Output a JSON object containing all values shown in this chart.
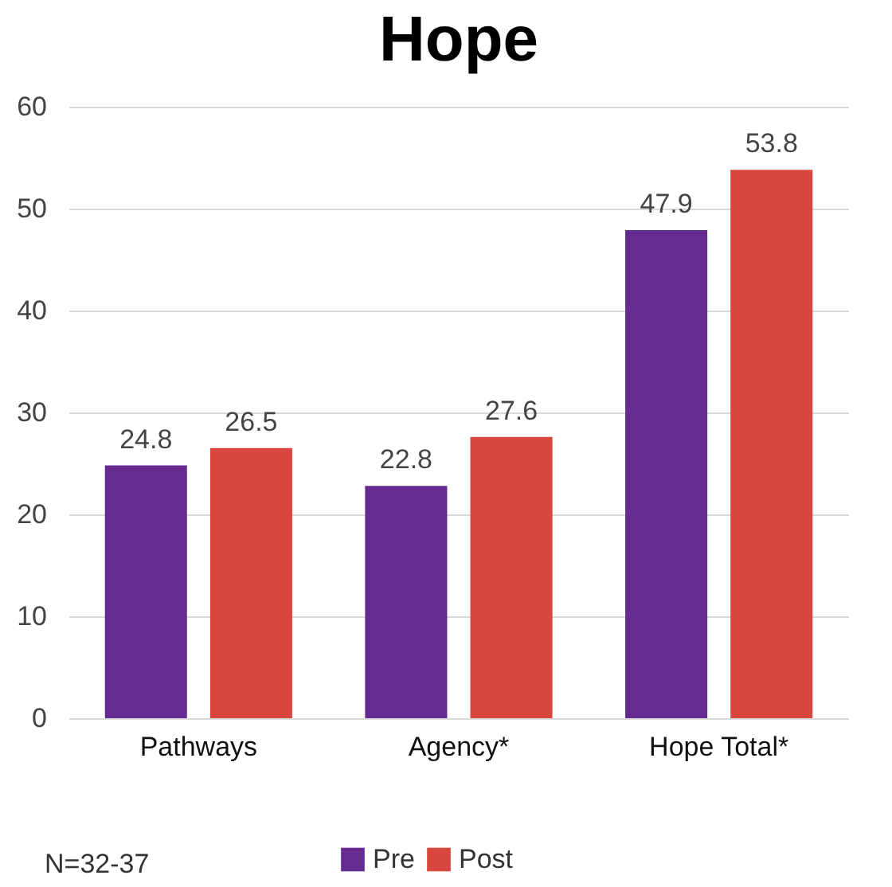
{
  "chart_data": {
    "type": "bar",
    "title": "Hope",
    "categories": [
      "Pathways",
      "Agency*",
      "Hope Total*"
    ],
    "series": [
      {
        "name": "Pre",
        "color": "#652b91",
        "values": [
          24.8,
          22.8,
          47.9
        ]
      },
      {
        "name": "Post",
        "color": "#d9463e",
        "values": [
          26.5,
          27.6,
          53.8
        ]
      }
    ],
    "ylim": [
      0,
      60
    ],
    "yticks": [
      0,
      10,
      20,
      30,
      40,
      50,
      60
    ],
    "grid": "y",
    "legend": "bottom",
    "data_labels": true,
    "annotations": [
      "N=32-37"
    ]
  }
}
